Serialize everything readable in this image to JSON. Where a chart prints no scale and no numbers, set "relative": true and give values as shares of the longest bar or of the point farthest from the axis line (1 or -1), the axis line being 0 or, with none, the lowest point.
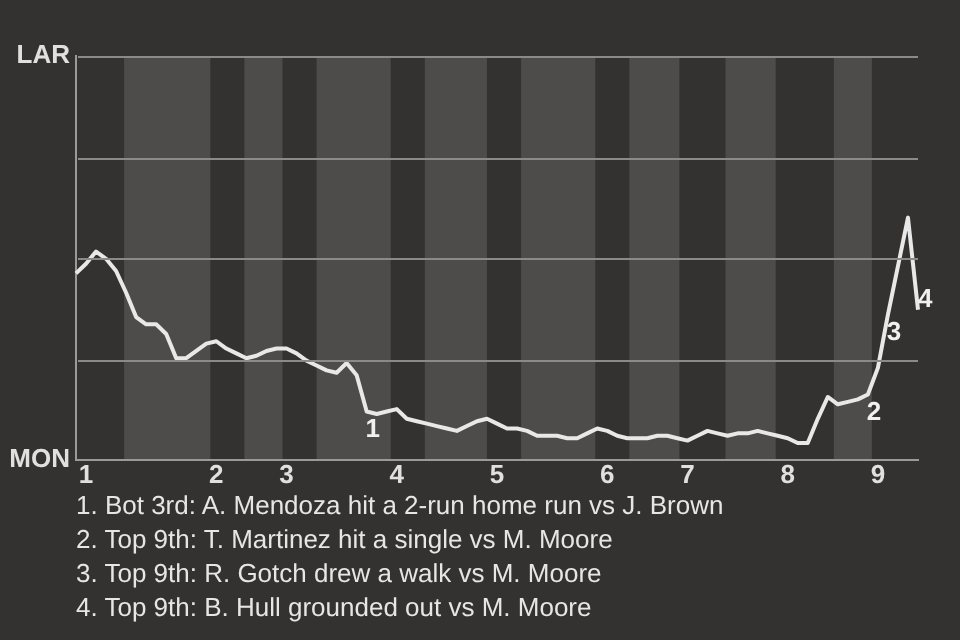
{
  "chart_data": {
    "type": "line",
    "relative": true,
    "categories": [
      null,
      "1",
      null,
      null,
      null,
      null,
      null,
      null,
      null,
      null,
      null,
      null,
      null,
      null,
      "2",
      null,
      null,
      null,
      null,
      null,
      null,
      "3",
      null,
      null,
      null,
      null,
      null,
      null,
      null,
      null,
      null,
      null,
      "4",
      null,
      null,
      null,
      null,
      null,
      null,
      null,
      null,
      null,
      "5",
      null,
      null,
      null,
      null,
      null,
      null,
      null,
      null,
      null,
      null,
      "6",
      null,
      null,
      null,
      null,
      null,
      null,
      null,
      "7",
      null,
      null,
      null,
      null,
      null,
      null,
      null,
      null,
      null,
      "8",
      null,
      null,
      null,
      null,
      null,
      null,
      null,
      null,
      "9",
      null,
      null,
      null,
      null
    ],
    "values": [
      0.77,
      0.81,
      0.86,
      0.83,
      0.78,
      0.69,
      0.59,
      0.56,
      0.56,
      0.52,
      0.42,
      0.42,
      0.45,
      0.48,
      0.49,
      0.46,
      0.44,
      0.42,
      0.43,
      0.45,
      0.46,
      0.46,
      0.44,
      0.41,
      0.39,
      0.37,
      0.36,
      0.4,
      0.35,
      0.2,
      0.19,
      0.2,
      0.21,
      0.17,
      0.16,
      0.15,
      0.14,
      0.13,
      0.12,
      0.14,
      0.16,
      0.17,
      0.15,
      0.13,
      0.13,
      0.12,
      0.1,
      0.1,
      0.1,
      0.09,
      0.09,
      0.11,
      0.13,
      0.12,
      0.1,
      0.09,
      0.09,
      0.09,
      0.1,
      0.1,
      0.09,
      0.08,
      0.1,
      0.12,
      0.11,
      0.1,
      0.11,
      0.11,
      0.12,
      0.11,
      0.1,
      0.09,
      0.07,
      0.07,
      0.17,
      0.26,
      0.23,
      0.24,
      0.25,
      0.27,
      0.38,
      0.6,
      0.8,
      1.0,
      0.62
    ],
    "color": "#e8e8e8",
    "marker": "none",
    "line_style": "solid",
    "ylim": [
      0,
      1.667
    ],
    "annotations": [
      "LAR",
      "MON",
      {
        "text": "1",
        "y": 0.2
      },
      {
        "text": "2",
        "y": 0.27
      },
      {
        "text": "3",
        "y": 0.6
      },
      {
        "text": "4",
        "y": 0.62
      },
      "1. Bot 3rd: A. Mendoza hit a 2-run home run vs J. Brown",
      "2. Top 9th: T. Martinez hit a single vs M. Moore",
      "3. Top 9th: R. Gotch drew a walk vs M. Moore",
      "4. Top 9th: B. Hull grounded out vs M. Moore"
    ]
  }
}
